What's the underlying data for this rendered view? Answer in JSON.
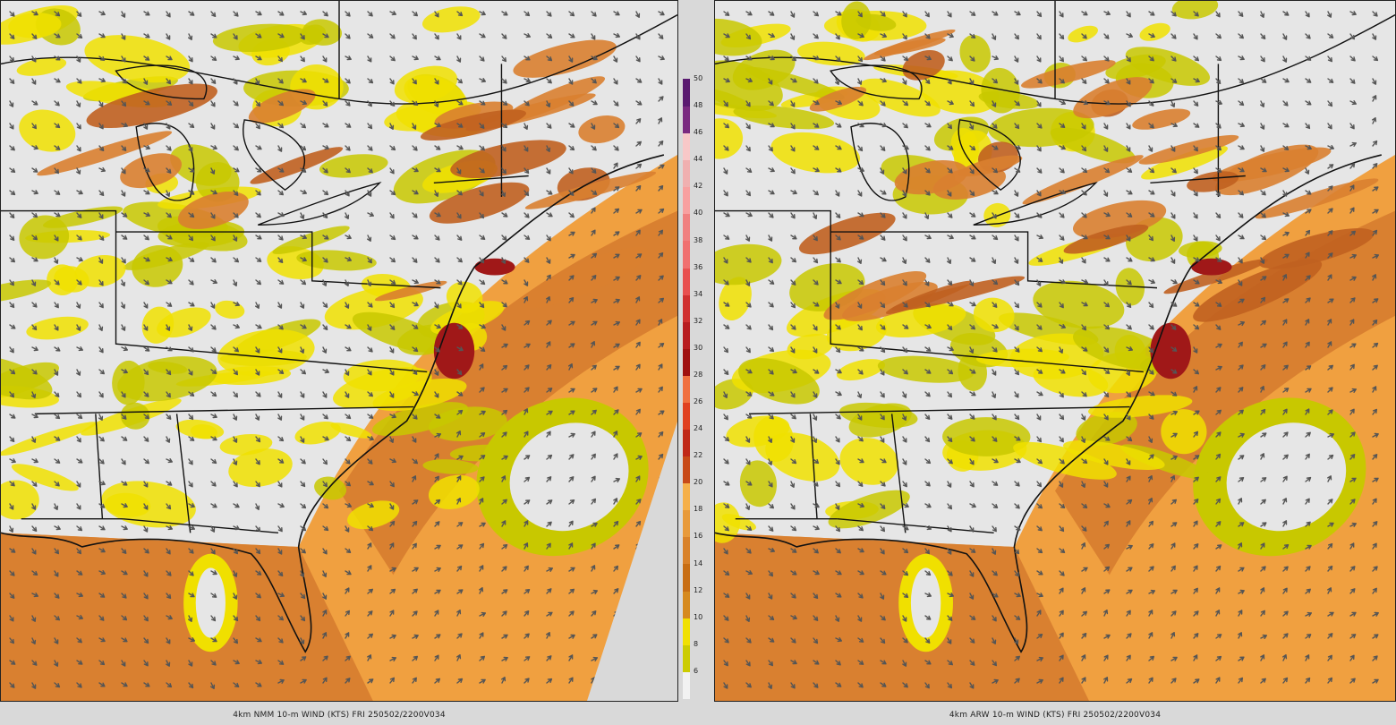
{
  "panels": [
    {
      "id": "left",
      "caption": "4km NMM 10-m WIND (KTS) FRI 250502/2200V034"
    },
    {
      "id": "right",
      "caption": "4km ARW 10-m WIND (KTS) FRI 250502/2200V034"
    }
  ],
  "colorbar": {
    "levels": [
      6,
      8,
      10,
      12,
      14,
      16,
      18,
      20,
      22,
      24,
      26,
      28,
      30,
      32,
      34,
      36,
      38,
      40,
      42,
      44,
      46,
      48,
      50
    ],
    "labels": [
      "6",
      "8",
      "10",
      "12",
      "14",
      "16",
      "18",
      "20",
      "22",
      "24",
      "26",
      "28",
      "30",
      "32",
      "34",
      "36",
      "38",
      "40",
      "42",
      "44",
      "46",
      "48",
      "50"
    ],
    "colors": [
      "#f2f2f2",
      "#cccc00",
      "#f0e000",
      "#d68a1e",
      "#c86e14",
      "#d9822a",
      "#e89a3a",
      "#f5b04a",
      "#c84a18",
      "#c02818",
      "#e04020",
      "#f07040",
      "#a01010",
      "#b81c20",
      "#d03030",
      "#e85050",
      "#f07070",
      "#f08080",
      "#f8a0a0",
      "#f0b0b0",
      "#f8c8c8",
      "#7a2a80",
      "#5a1a70"
    ]
  },
  "palette": {
    "land_gray": "#e6e6e6",
    "yellow_light": "#f0e000",
    "yellow_olive": "#c8c800",
    "orange_light": "#f0a040",
    "orange_mid": "#d98030",
    "orange_dark": "#c06020",
    "red_dark": "#a01818",
    "border": "#111111",
    "arrow": "#555555"
  }
}
